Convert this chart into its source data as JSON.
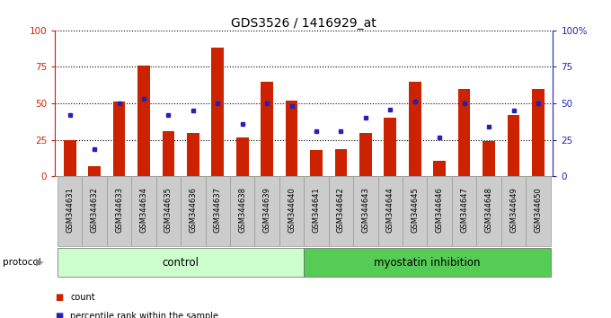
{
  "title": "GDS3526 / 1416929_at",
  "samples": [
    "GSM344631",
    "GSM344632",
    "GSM344633",
    "GSM344634",
    "GSM344635",
    "GSM344636",
    "GSM344637",
    "GSM344638",
    "GSM344639",
    "GSM344640",
    "GSM344641",
    "GSM344642",
    "GSM344643",
    "GSM344644",
    "GSM344645",
    "GSM344646",
    "GSM344647",
    "GSM344648",
    "GSM344649",
    "GSM344650"
  ],
  "counts": [
    25,
    7,
    51,
    76,
    31,
    30,
    88,
    27,
    65,
    52,
    18,
    19,
    30,
    40,
    65,
    11,
    60,
    24,
    42,
    60
  ],
  "percentiles": [
    42,
    19,
    50,
    53,
    42,
    45,
    50,
    36,
    50,
    48,
    31,
    31,
    40,
    46,
    51,
    27,
    50,
    34,
    45,
    50
  ],
  "bar_color": "#cc2200",
  "dot_color": "#2222bb",
  "n_control": 10,
  "n_treatment": 10,
  "control_label": "control",
  "treatment_label": "myostatin inhibition",
  "protocol_label": "protocol",
  "legend_count": "count",
  "legend_percentile": "percentile rank within the sample",
  "ylim": [
    0,
    100
  ],
  "yticks": [
    0,
    25,
    50,
    75,
    100
  ],
  "ytick_right_labels": [
    "0",
    "25",
    "50",
    "75",
    "100%"
  ],
  "left_axis_color": "#cc2200",
  "right_axis_color": "#2222bb",
  "control_bg": "#ccffcc",
  "treatment_bg": "#55cc55",
  "xtick_bg": "#cccccc",
  "bg_color": "#ffffff",
  "title_fontsize": 10,
  "bar_width": 0.5
}
